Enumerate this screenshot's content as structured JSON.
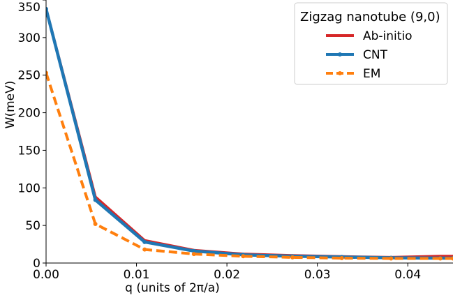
{
  "chart_data": {
    "type": "line",
    "title": "",
    "xlabel": "q (units of 2π/a)",
    "ylabel": "W(meV)",
    "xlim": [
      0.0,
      0.045
    ],
    "ylim": [
      0,
      350
    ],
    "xticks": [
      0.0,
      0.01,
      0.02,
      0.03,
      0.04
    ],
    "xtick_labels": [
      "0.00",
      "0.01",
      "0.02",
      "0.03",
      "0.04"
    ],
    "yticks": [
      0,
      50,
      100,
      150,
      200,
      250,
      300,
      350
    ],
    "ytick_labels": [
      "0",
      "50",
      "100",
      "150",
      "200",
      "250",
      "300",
      "350"
    ],
    "grid": false,
    "legend": {
      "title": "Zigzag nanotube (9,0)",
      "placement": "top-right"
    },
    "series": [
      {
        "name": "Ab-initio",
        "color": "#d62728",
        "style": "solid",
        "x": [
          0.0,
          0.00545,
          0.0109,
          0.01635,
          0.0218,
          0.02725,
          0.0327,
          0.03815,
          0.0436,
          0.045
        ],
        "y": [
          338,
          88,
          30,
          17,
          12,
          10,
          8.5,
          7.5,
          9,
          9
        ]
      },
      {
        "name": "CNT",
        "color": "#1f77b4",
        "style": "solid-marker",
        "x": [
          0.0,
          0.00545,
          0.0109,
          0.01635,
          0.0218,
          0.02725,
          0.0327,
          0.03815,
          0.0436,
          0.045
        ],
        "y": [
          338,
          84,
          28,
          16,
          11,
          9,
          8,
          7,
          6.5,
          6.5
        ]
      },
      {
        "name": "EM",
        "color": "#ff7f0e",
        "style": "dashed-marker",
        "x": [
          0.0,
          0.00545,
          0.0109,
          0.01635,
          0.0218,
          0.02725,
          0.0327,
          0.03815,
          0.0436,
          0.045
        ],
        "y": [
          253,
          52,
          18,
          12,
          9,
          7.5,
          6.5,
          6,
          6,
          6
        ]
      }
    ]
  }
}
